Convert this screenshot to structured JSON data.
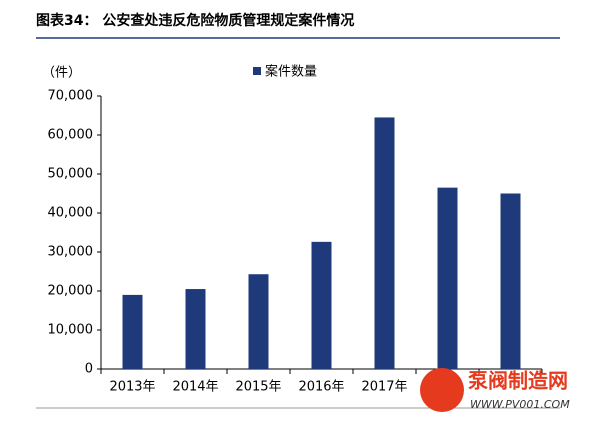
{
  "chart_data": {
    "type": "bar",
    "title": "图表34：  公安查处违反危险物质管理规定案件情况",
    "y_unit": "（件）",
    "categories": [
      "2013年",
      "2014年",
      "2015年",
      "2016年",
      "2017年",
      null,
      null
    ],
    "series": [
      {
        "name": "案件数量",
        "color": "#1f3a7a",
        "values": [
          19000,
          20500,
          24300,
          32600,
          64500,
          46500,
          45000
        ]
      }
    ],
    "ylim": [
      0,
      70000
    ],
    "yticks": [
      0,
      {
        "value": 10000,
        "label": "10,000"
      },
      {
        "value": 20000,
        "label": "20,000"
      },
      {
        "value": 30000,
        "label": "30,000"
      },
      {
        "value": 40000,
        "label": "40,000"
      },
      {
        "value": 50000,
        "label": "50,000"
      },
      {
        "value": 60000,
        "label": "60,000"
      },
      {
        "value": 70000,
        "label": "70,000"
      }
    ],
    "watermark": [
      "泵阀制造网",
      "WWW.PV001.COM"
    ]
  }
}
